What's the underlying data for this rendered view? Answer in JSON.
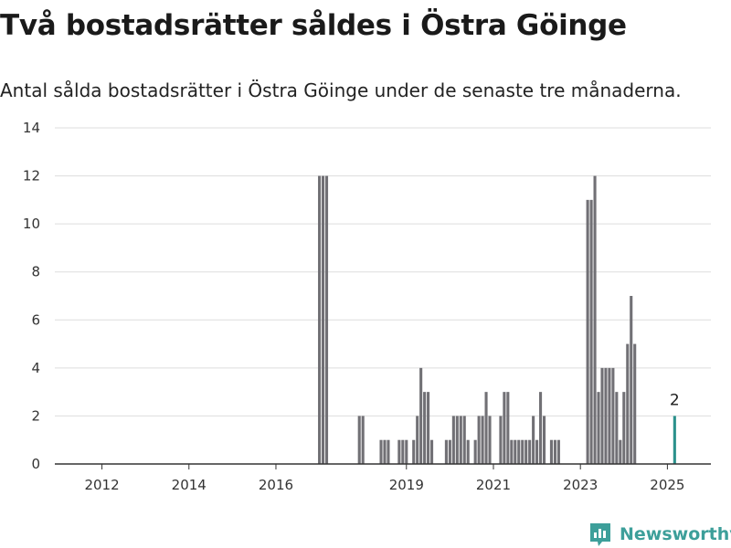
{
  "title": "Två bostadsrätter såldes i Östra Göinge",
  "subtitle": "Antal sålda bostadsrätter i Östra Göinge under de senaste tre månaderna.",
  "brand": {
    "name": "Newsworthy",
    "color": "#3d9f9a"
  },
  "chart_data": {
    "type": "bar",
    "title": "",
    "xlabel": "",
    "ylabel": "",
    "ylim": [
      0,
      14
    ],
    "yticks": [
      0,
      2,
      4,
      6,
      8,
      10,
      12,
      14
    ],
    "xtick_labels": [
      "2012",
      "2014",
      "2016",
      "2019",
      "2021",
      "2023",
      "2025"
    ],
    "x_range": [
      "2011-01",
      "2025-12"
    ],
    "grid": true,
    "colors": {
      "bar": "#717075",
      "highlight": "#2b918c",
      "grid": "#dddddd",
      "axis": "#333333"
    },
    "series": [
      {
        "x": [
          "2017-01",
          "2017-02",
          "2017-03",
          "2017-12",
          "2018-01",
          "2018-06",
          "2018-07",
          "2018-08",
          "2018-11",
          "2018-12",
          "2019-01",
          "2019-03",
          "2019-04",
          "2019-05",
          "2019-06",
          "2019-07",
          "2019-08",
          "2019-12",
          "2020-01",
          "2020-02",
          "2020-03",
          "2020-04",
          "2020-05",
          "2020-06",
          "2020-08",
          "2020-09",
          "2020-10",
          "2020-11",
          "2020-12",
          "2021-03",
          "2021-04",
          "2021-05",
          "2021-06",
          "2021-07",
          "2021-08",
          "2021-09",
          "2021-10",
          "2021-11",
          "2021-12",
          "2022-01",
          "2022-02",
          "2022-03",
          "2022-05",
          "2022-06",
          "2022-07",
          "2023-03",
          "2023-04",
          "2023-05",
          "2023-06",
          "2023-07",
          "2023-08",
          "2023-09",
          "2023-10",
          "2023-11",
          "2023-12",
          "2024-01",
          "2024-02",
          "2024-03",
          "2024-04",
          "2025-03"
        ],
        "values": [
          12,
          12,
          12,
          2,
          2,
          1,
          1,
          1,
          1,
          1,
          1,
          1,
          2,
          4,
          3,
          3,
          1,
          1,
          1,
          2,
          2,
          2,
          2,
          1,
          1,
          2,
          2,
          3,
          2,
          2,
          3,
          3,
          1,
          1,
          1,
          1,
          1,
          1,
          2,
          1,
          3,
          2,
          1,
          1,
          1,
          11,
          11,
          12,
          3,
          4,
          4,
          4,
          4,
          3,
          1,
          3,
          5,
          7,
          5,
          2
        ]
      }
    ],
    "highlight": {
      "x": "2025-03",
      "value": 2,
      "label": "2"
    }
  }
}
